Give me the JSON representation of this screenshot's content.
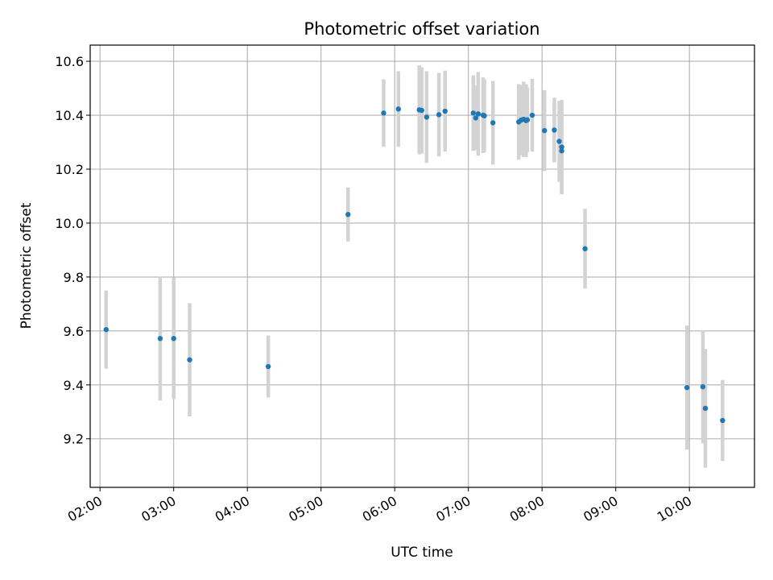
{
  "chart_data": {
    "type": "scatter",
    "title": "Photometric offset variation",
    "xlabel": "UTC time",
    "ylabel": "Photometric offset",
    "x_ticks": [
      "02:00",
      "03:00",
      "04:00",
      "05:00",
      "06:00",
      "07:00",
      "08:00",
      "09:00",
      "10:00"
    ],
    "y_ticks": [
      "9.2",
      "9.4",
      "9.6",
      "9.8",
      "10.0",
      "10.2",
      "10.4",
      "10.6"
    ],
    "xlim": [
      "01:52",
      "10:53"
    ],
    "ylim": [
      9.02,
      10.66
    ],
    "grid": true,
    "marker_color": "#1f77b4",
    "errorbar_color": "#d3d3d3",
    "points": [
      {
        "x": "02:05",
        "y": 9.605,
        "err": 0.145
      },
      {
        "x": "02:49",
        "y": 9.572,
        "err": 0.23
      },
      {
        "x": "03:00",
        "y": 9.572,
        "err": 0.225
      },
      {
        "x": "03:13",
        "y": 9.493,
        "err": 0.21
      },
      {
        "x": "04:17",
        "y": 9.468,
        "err": 0.115
      },
      {
        "x": "05:22",
        "y": 10.032,
        "err": 0.1
      },
      {
        "x": "05:51",
        "y": 10.408,
        "err": 0.125
      },
      {
        "x": "06:03",
        "y": 10.423,
        "err": 0.14
      },
      {
        "x": "06:20",
        "y": 10.42,
        "err": 0.165
      },
      {
        "x": "06:22",
        "y": 10.418,
        "err": 0.16
      },
      {
        "x": "06:26",
        "y": 10.393,
        "err": 0.17
      },
      {
        "x": "06:36",
        "y": 10.402,
        "err": 0.155
      },
      {
        "x": "06:41",
        "y": 10.415,
        "err": 0.15
      },
      {
        "x": "07:04",
        "y": 10.408,
        "err": 0.14
      },
      {
        "x": "07:06",
        "y": 10.39,
        "err": 0.12
      },
      {
        "x": "07:08",
        "y": 10.405,
        "err": 0.155
      },
      {
        "x": "07:12",
        "y": 10.4,
        "err": 0.14
      },
      {
        "x": "07:13",
        "y": 10.398,
        "err": 0.135
      },
      {
        "x": "07:20",
        "y": 10.372,
        "err": 0.155
      },
      {
        "x": "07:41",
        "y": 10.375,
        "err": 0.14
      },
      {
        "x": "07:43",
        "y": 10.382,
        "err": 0.13
      },
      {
        "x": "07:45",
        "y": 10.385,
        "err": 0.14
      },
      {
        "x": "07:47",
        "y": 10.38,
        "err": 0.135
      },
      {
        "x": "07:48",
        "y": 10.383,
        "err": 0.12
      },
      {
        "x": "07:52",
        "y": 10.4,
        "err": 0.135
      },
      {
        "x": "08:02",
        "y": 10.343,
        "err": 0.15
      },
      {
        "x": "08:10",
        "y": 10.345,
        "err": 0.12
      },
      {
        "x": "08:14",
        "y": 10.303,
        "err": 0.15
      },
      {
        "x": "08:16",
        "y": 10.282,
        "err": 0.175
      },
      {
        "x": "08:16",
        "y": 10.268,
        "err": 0.155
      },
      {
        "x": "08:35",
        "y": 9.905,
        "err": 0.148
      },
      {
        "x": "09:58",
        "y": 9.39,
        "err": 0.23
      },
      {
        "x": "10:11",
        "y": 9.393,
        "err": 0.21
      },
      {
        "x": "10:13",
        "y": 9.313,
        "err": 0.22
      },
      {
        "x": "10:27",
        "y": 9.268,
        "err": 0.15
      }
    ]
  }
}
